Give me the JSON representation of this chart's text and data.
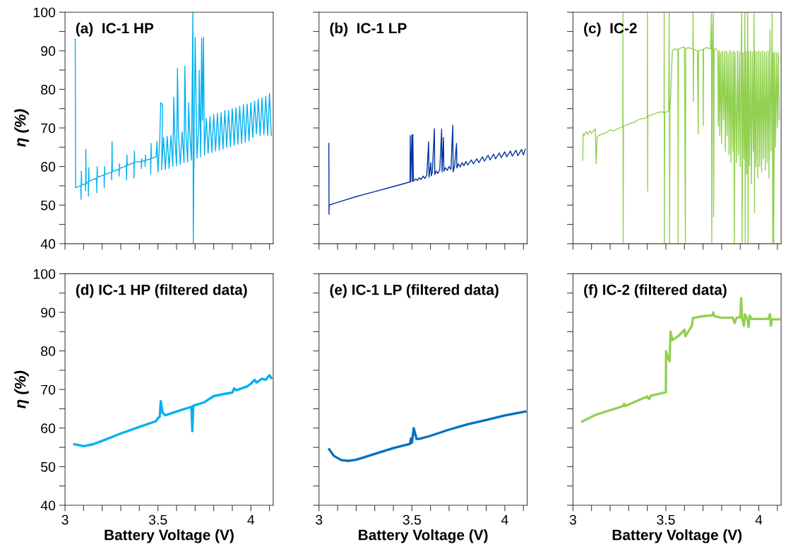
{
  "chart_data": [
    {
      "type": "line",
      "title": "(a)  IC-1 HP",
      "ylabel": "η (%)",
      "tick_labels": "y",
      "xlim": [
        3,
        4.12
      ],
      "ylim": [
        40,
        100
      ],
      "xticks": [
        3,
        {
          "value": 3.1,
          "label": null
        },
        {
          "value": 3.2,
          "label": null
        },
        {
          "value": 3.3,
          "label": null
        },
        {
          "value": 3.4,
          "label": null
        },
        3.5,
        {
          "value": 3.6,
          "label": null
        },
        {
          "value": 3.7,
          "label": null
        },
        {
          "value": 3.8,
          "label": null
        },
        {
          "value": 3.9,
          "label": null
        },
        4,
        {
          "value": 4.1,
          "label": null
        }
      ],
      "yticks": [
        40,
        {
          "value": 45,
          "label": null
        },
        50,
        {
          "value": 55,
          "label": null
        },
        60,
        {
          "value": 65,
          "label": null
        },
        70,
        {
          "value": 75,
          "label": null
        },
        80,
        {
          "value": 85,
          "label": null
        },
        90,
        {
          "value": 95,
          "label": null
        },
        100
      ],
      "series": [
        {
          "color": "#00b0f0",
          "x": [
            3.055,
            3.057,
            3.085,
            3.086,
            3.088,
            3.09,
            3.11,
            3.111,
            3.112,
            3.114,
            3.125,
            3.126,
            3.128,
            3.13,
            3.17,
            3.171,
            3.173,
            3.175,
            3.21,
            3.211,
            3.213,
            3.215,
            3.25,
            3.251,
            3.253,
            3.255,
            3.29,
            3.291,
            3.293,
            3.295,
            3.33,
            3.331,
            3.333,
            3.335,
            3.37,
            3.371,
            3.373,
            3.375,
            3.41,
            3.411,
            3.413,
            3.415,
            3.43,
            3.431,
            3.433,
            3.435,
            3.46,
            3.461,
            3.463,
            3.465,
            3.49,
            3.495,
            3.5,
            3.51,
            3.515,
            3.525,
            3.52,
            3.53,
            3.54,
            3.55,
            3.56,
            3.57,
            3.58,
            3.585,
            3.59,
            3.6,
            3.605,
            3.61,
            3.62,
            3.63,
            3.64,
            3.645,
            3.65,
            3.66,
            3.665,
            3.67,
            3.68,
            3.688,
            3.69,
            3.695,
            3.7,
            3.71,
            3.72,
            3.722,
            3.73,
            3.735,
            3.74,
            3.745,
            3.75,
            3.76,
            3.77,
            3.78,
            3.79,
            3.8,
            3.81,
            3.82,
            3.83,
            3.84,
            3.85,
            3.86,
            3.87,
            3.88,
            3.89,
            3.9,
            3.91,
            3.92,
            3.93,
            3.94,
            3.95,
            3.96,
            3.97,
            3.98,
            3.99,
            4.0,
            4.01,
            4.02,
            4.03,
            4.04,
            4.05,
            4.06,
            4.07,
            4.08,
            4.09,
            4.1,
            4.11
          ],
          "values": [
            93,
            54.5,
            55,
            51.5,
            58.8,
            55.2,
            55.5,
            53.8,
            64.5,
            55.6,
            56,
            52.3,
            59.7,
            56.2,
            57,
            53.2,
            60,
            57.2,
            57.8,
            54.5,
            60,
            58,
            58.5,
            56.5,
            66.5,
            58.7,
            59.3,
            57.5,
            60.7,
            59.5,
            60.2,
            56.5,
            63,
            60.3,
            61,
            57,
            64,
            61.1,
            61.3,
            59.5,
            62,
            61.4,
            61.5,
            60,
            63,
            61.6,
            62,
            58,
            66,
            62.1,
            62.5,
            66.5,
            58.5,
            67.2,
            76.5,
            76,
            59.2,
            67.5,
            59.2,
            67.8,
            59.5,
            68,
            60,
            78,
            68.3,
            60.2,
            85.5,
            68.6,
            60.5,
            69,
            61,
            86,
            69.2,
            61.2,
            76.5,
            69.5,
            61.6,
            100,
            40,
            70,
            93.5,
            62.2,
            71,
            85,
            62.5,
            93.2,
            72,
            93.5,
            63,
            72.5,
            63.4,
            73,
            63.6,
            73.5,
            64,
            73.8,
            64.2,
            74,
            64.5,
            74.5,
            65,
            74.5,
            65.2,
            75,
            65.5,
            75.2,
            65.8,
            75.6,
            66,
            76,
            66.3,
            76.2,
            66.6,
            76.5,
            67.5,
            77,
            68.5,
            77.5,
            68,
            77.8,
            68.2,
            78.2,
            68,
            79,
            68
          ]
        }
      ]
    },
    {
      "type": "line",
      "title": "(b)  IC-1 LP",
      "tick_labels": false,
      "xlim": [
        3,
        4.12
      ],
      "ylim": [
        40,
        100
      ],
      "xticks": [
        3,
        {
          "value": 3.1,
          "label": null
        },
        {
          "value": 3.2,
          "label": null
        },
        {
          "value": 3.3,
          "label": null
        },
        {
          "value": 3.4,
          "label": null
        },
        3.5,
        {
          "value": 3.6,
          "label": null
        },
        {
          "value": 3.7,
          "label": null
        },
        {
          "value": 3.8,
          "label": null
        },
        {
          "value": 3.9,
          "label": null
        },
        4,
        {
          "value": 4.1,
          "label": null
        }
      ],
      "yticks": [
        40,
        {
          "value": 45,
          "label": null
        },
        50,
        {
          "value": 55,
          "label": null
        },
        60,
        {
          "value": 65,
          "label": null
        },
        70,
        {
          "value": 75,
          "label": null
        },
        80,
        {
          "value": 85,
          "label": null
        },
        90,
        {
          "value": 95,
          "label": null
        },
        100
      ],
      "series": [
        {
          "color": "#0033a0",
          "x": [
            3.053,
            3.054,
            3.055,
            3.1,
            3.2,
            3.3,
            3.4,
            3.49,
            3.491,
            3.493,
            3.5,
            3.503,
            3.505,
            3.508,
            3.52,
            3.53,
            3.54,
            3.55,
            3.56,
            3.57,
            3.58,
            3.59,
            3.592,
            3.602,
            3.604,
            3.61,
            3.621,
            3.623,
            3.63,
            3.64,
            3.65,
            3.66,
            3.662,
            3.67,
            3.672,
            3.68,
            3.69,
            3.7,
            3.71,
            3.72,
            3.722,
            3.73,
            3.74,
            3.742,
            3.75,
            3.76,
            3.77,
            3.78,
            3.79,
            3.8,
            3.82,
            3.83,
            3.85,
            3.86,
            3.88,
            3.89,
            3.91,
            3.92,
            3.94,
            3.95,
            3.97,
            3.98,
            4.0,
            4.01,
            4.03,
            4.04,
            4.06,
            4.07,
            4.09,
            4.1,
            4.11
          ],
          "values": [
            66,
            47.6,
            50,
            50.7,
            52.2,
            53.5,
            54.8,
            56,
            68,
            56,
            68.2,
            56.1,
            68.3,
            56.2,
            56.8,
            56.4,
            57.1,
            56.6,
            57.5,
            56.9,
            57.8,
            66.4,
            57.2,
            61,
            57.6,
            58.5,
            69.8,
            57.9,
            58.8,
            58.2,
            59.2,
            69.7,
            58.6,
            67.5,
            58.8,
            59.7,
            59,
            60,
            59.2,
            70.7,
            58.6,
            60.3,
            66,
            59.6,
            60.7,
            59.9,
            61,
            60.2,
            61.3,
            60.4,
            61.7,
            60.7,
            62,
            61,
            62.5,
            61.4,
            62.9,
            61.7,
            63.2,
            62,
            63.5,
            62.3,
            63.8,
            62.5,
            64,
            62.7,
            64.2,
            62.8,
            64.4,
            63,
            64.5
          ]
        }
      ]
    },
    {
      "type": "line",
      "title": "(c)  IC-2",
      "tick_labels": false,
      "xlim": [
        3,
        4.12
      ],
      "ylim": [
        40,
        100
      ],
      "xticks": [
        3,
        {
          "value": 3.1,
          "label": null
        },
        {
          "value": 3.2,
          "label": null
        },
        {
          "value": 3.3,
          "label": null
        },
        {
          "value": 3.4,
          "label": null
        },
        3.5,
        {
          "value": 3.6,
          "label": null
        },
        {
          "value": 3.7,
          "label": null
        },
        {
          "value": 3.8,
          "label": null
        },
        {
          "value": 3.9,
          "label": null
        },
        4,
        {
          "value": 4.1,
          "label": null
        }
      ],
      "yticks": [
        40,
        {
          "value": 45,
          "label": null
        },
        50,
        {
          "value": 55,
          "label": null
        },
        60,
        {
          "value": 65,
          "label": null
        },
        70,
        {
          "value": 75,
          "label": null
        },
        80,
        {
          "value": 85,
          "label": null
        },
        90,
        {
          "value": 95,
          "label": null
        },
        100
      ],
      "series": [
        {
          "color": "#92d050",
          "x": [
            3.053,
            3.055,
            3.06,
            3.07,
            3.08,
            3.09,
            3.1,
            3.12,
            3.125,
            3.13,
            3.15,
            3.18,
            3.2,
            3.22,
            3.25,
            3.268,
            3.269,
            3.27,
            3.272,
            3.3,
            3.33,
            3.36,
            3.39,
            3.4,
            3.401,
            3.402,
            3.403,
            3.43,
            3.46,
            3.48,
            3.49,
            3.491,
            3.492,
            3.494,
            3.515,
            3.518,
            3.52,
            3.522,
            3.535,
            3.55,
            3.565,
            3.566,
            3.568,
            3.6,
            3.605,
            3.607,
            3.62,
            3.645,
            3.646,
            3.648,
            3.65,
            3.67,
            3.674,
            3.676,
            3.7,
            3.701,
            3.703,
            3.72,
            3.74,
            3.745,
            3.747,
            3.75,
            3.755,
            3.757,
            3.76,
            3.77,
            3.78,
            3.782,
            3.787,
            3.79,
            3.795,
            3.8,
            3.805,
            3.81,
            3.815,
            3.82,
            3.825,
            3.83,
            3.835,
            3.84,
            3.845,
            3.85,
            3.855,
            3.86,
            3.865,
            3.869,
            3.872,
            3.88,
            3.885,
            3.89,
            3.895,
            3.9,
            3.905,
            3.908,
            3.91,
            3.915,
            3.92,
            3.925,
            3.927,
            3.93,
            3.935,
            3.94,
            3.942,
            3.945,
            3.95,
            3.955,
            3.96,
            3.965,
            3.97,
            3.975,
            3.977,
            3.98,
            3.985,
            3.99,
            3.995,
            4.0,
            4.005,
            4.01,
            4.015,
            4.02,
            4.025,
            4.03,
            4.035,
            4.04,
            4.045,
            4.05,
            4.055,
            4.06,
            4.065,
            4.07,
            4.072,
            4.075,
            4.078,
            4.08,
            4.085,
            4.09,
            4.095,
            4.1,
            4.105,
            4.11
          ],
          "values": [
            61.6,
            68.5,
            68,
            69,
            68.3,
            69.3,
            68.6,
            69.8,
            60.7,
            67.8,
            68.3,
            68.8,
            69.5,
            69.3,
            70,
            70.3,
            100,
            40,
            70.5,
            71,
            71.5,
            72.3,
            72.5,
            73,
            100,
            53.6,
            73,
            73.5,
            74,
            74.2,
            73.8,
            100,
            40,
            74,
            74.3,
            100,
            40,
            74,
            90,
            90.5,
            90.2,
            40,
            90.5,
            91,
            40,
            90.5,
            90.8,
            90.5,
            100,
            76.8,
            90.3,
            90,
            68.4,
            90,
            90.3,
            70.6,
            90.5,
            90.8,
            90.5,
            100,
            40,
            91,
            100,
            47,
            90.5,
            90.5,
            89.8,
            70.5,
            90,
            68,
            89.5,
            66,
            90,
            72,
            89.8,
            64,
            90,
            68,
            89.5,
            63,
            90.2,
            61,
            89.7,
            64,
            90,
            40,
            89.5,
            61,
            90,
            63,
            89.7,
            60,
            90.3,
            100,
            40,
            89.5,
            62,
            100,
            40,
            89.8,
            58,
            100,
            40,
            89.7,
            60,
            90,
            55.5,
            89.6,
            64,
            100,
            48,
            90,
            60,
            89.8,
            57,
            90,
            60,
            89.7,
            58.5,
            90,
            62,
            89.6,
            59,
            89.8,
            61,
            90,
            57,
            95.4,
            64,
            89.7,
            100,
            40,
            89.5,
            40,
            89.6,
            65,
            89.5,
            70,
            89.5,
            72
          ]
        }
      ]
    },
    {
      "type": "line",
      "title": "(d) IC-1 HP (filtered data)",
      "xlabel": "Battery Voltage (V)",
      "ylabel": "η (%)",
      "xlim": [
        3,
        4.12
      ],
      "ylim": [
        40,
        100
      ],
      "xticks": [
        3,
        {
          "value": 3.1,
          "label": null
        },
        {
          "value": 3.2,
          "label": null
        },
        {
          "value": 3.3,
          "label": null
        },
        {
          "value": 3.4,
          "label": null
        },
        3.5,
        {
          "value": 3.6,
          "label": null
        },
        {
          "value": 3.7,
          "label": null
        },
        {
          "value": 3.8,
          "label": null
        },
        {
          "value": 3.9,
          "label": null
        },
        4,
        {
          "value": 4.1,
          "label": null
        }
      ],
      "yticks": [
        40,
        {
          "value": 45,
          "label": null
        },
        50,
        {
          "value": 55,
          "label": null
        },
        60,
        {
          "value": 65,
          "label": null
        },
        70,
        {
          "value": 75,
          "label": null
        },
        80,
        {
          "value": 85,
          "label": null
        },
        90,
        {
          "value": 95,
          "label": null
        },
        100
      ],
      "series": [
        {
          "color": "#00b0f0",
          "x": [
            3.05,
            3.1,
            3.15,
            3.2,
            3.3,
            3.4,
            3.49,
            3.5,
            3.51,
            3.515,
            3.525,
            3.54,
            3.6,
            3.68,
            3.685,
            3.69,
            3.75,
            3.8,
            3.85,
            3.9,
            3.91,
            3.92,
            3.98,
            4.0,
            4.02,
            4.03,
            4.06,
            4.08,
            4.1,
            4.11
          ],
          "values": [
            55.8,
            55.3,
            55.8,
            56.7,
            58.6,
            60.3,
            61.8,
            62.6,
            63,
            67,
            64,
            63.3,
            64.3,
            65.5,
            59.2,
            65.8,
            66.7,
            68.3,
            68.8,
            69.2,
            70.3,
            69.8,
            70.8,
            71.5,
            72.5,
            71.8,
            72.8,
            72.5,
            73.7,
            73
          ]
        }
      ]
    },
    {
      "type": "line",
      "title": "(e) IC-1 LP (filtered data)",
      "xlabel": "Battery Voltage (V)",
      "tick_labels": "x",
      "xlim": [
        3,
        4.12
      ],
      "ylim": [
        40,
        100
      ],
      "xticks": [
        3,
        {
          "value": 3.1,
          "label": null
        },
        {
          "value": 3.2,
          "label": null
        },
        {
          "value": 3.3,
          "label": null
        },
        {
          "value": 3.4,
          "label": null
        },
        3.5,
        {
          "value": 3.6,
          "label": null
        },
        {
          "value": 3.7,
          "label": null
        },
        {
          "value": 3.8,
          "label": null
        },
        {
          "value": 3.9,
          "label": null
        },
        4,
        {
          "value": 4.1,
          "label": null
        }
      ],
      "yticks": [
        40,
        {
          "value": 45,
          "label": null
        },
        50,
        {
          "value": 55,
          "label": null
        },
        60,
        {
          "value": 65,
          "label": null
        },
        70,
        {
          "value": 75,
          "label": null
        },
        80,
        {
          "value": 85,
          "label": null
        },
        90,
        {
          "value": 95,
          "label": null
        },
        100
      ],
      "series": [
        {
          "color": "#0070c0",
          "x": [
            3.055,
            3.08,
            3.12,
            3.16,
            3.2,
            3.3,
            3.4,
            3.49,
            3.495,
            3.5,
            3.51,
            3.525,
            3.54,
            3.6,
            3.7,
            3.8,
            3.9,
            4.0,
            4.11
          ],
          "values": [
            54.5,
            52.8,
            51.7,
            51.5,
            51.8,
            53.3,
            54.8,
            55.9,
            57.3,
            56.2,
            60,
            57.2,
            57.2,
            58,
            59.6,
            61,
            62.1,
            63.3,
            64.3
          ]
        }
      ]
    },
    {
      "type": "line",
      "title": "(f) IC-2 (filtered data)",
      "xlabel": "Battery Voltage (V)",
      "tick_labels": "x",
      "xlim": [
        3,
        4.12
      ],
      "ylim": [
        40,
        100
      ],
      "xticks": [
        3,
        {
          "value": 3.1,
          "label": null
        },
        {
          "value": 3.2,
          "label": null
        },
        {
          "value": 3.3,
          "label": null
        },
        {
          "value": 3.4,
          "label": null
        },
        3.5,
        {
          "value": 3.6,
          "label": null
        },
        {
          "value": 3.7,
          "label": null
        },
        {
          "value": 3.8,
          "label": null
        },
        {
          "value": 3.9,
          "label": null
        },
        4,
        {
          "value": 4.1,
          "label": null
        }
      ],
      "yticks": [
        40,
        {
          "value": 45,
          "label": null
        },
        50,
        {
          "value": 55,
          "label": null
        },
        60,
        {
          "value": 65,
          "label": null
        },
        70,
        {
          "value": 75,
          "label": null
        },
        80,
        {
          "value": 85,
          "label": null
        },
        90,
        {
          "value": 95,
          "label": null
        },
        100
      ],
      "series": [
        {
          "color": "#92d050",
          "x": [
            3.05,
            3.12,
            3.27,
            3.275,
            3.28,
            3.4,
            3.41,
            3.42,
            3.5,
            3.501,
            3.51,
            3.52,
            3.525,
            3.535,
            3.57,
            3.6,
            3.605,
            3.64,
            3.645,
            3.7,
            3.75,
            3.755,
            3.76,
            3.8,
            3.86,
            3.87,
            3.88,
            3.9,
            3.905,
            3.91,
            3.92,
            3.925,
            3.94,
            3.945,
            3.95,
            3.96,
            4.05,
            4.06,
            4.065,
            4.07,
            4.11
          ],
          "values": [
            61.7,
            63.4,
            65.7,
            66.3,
            65.7,
            68.2,
            67.5,
            68.4,
            69.3,
            80,
            78.3,
            77.3,
            85,
            82.8,
            84,
            85.5,
            83.8,
            86.5,
            88.5,
            89,
            89.2,
            90,
            89,
            88.6,
            88.6,
            87.2,
            88.6,
            88.7,
            93.7,
            88.5,
            86.5,
            89.5,
            88,
            86.2,
            89.2,
            88.3,
            88.3,
            89.5,
            86.5,
            88.2,
            88.2
          ]
        }
      ]
    }
  ]
}
